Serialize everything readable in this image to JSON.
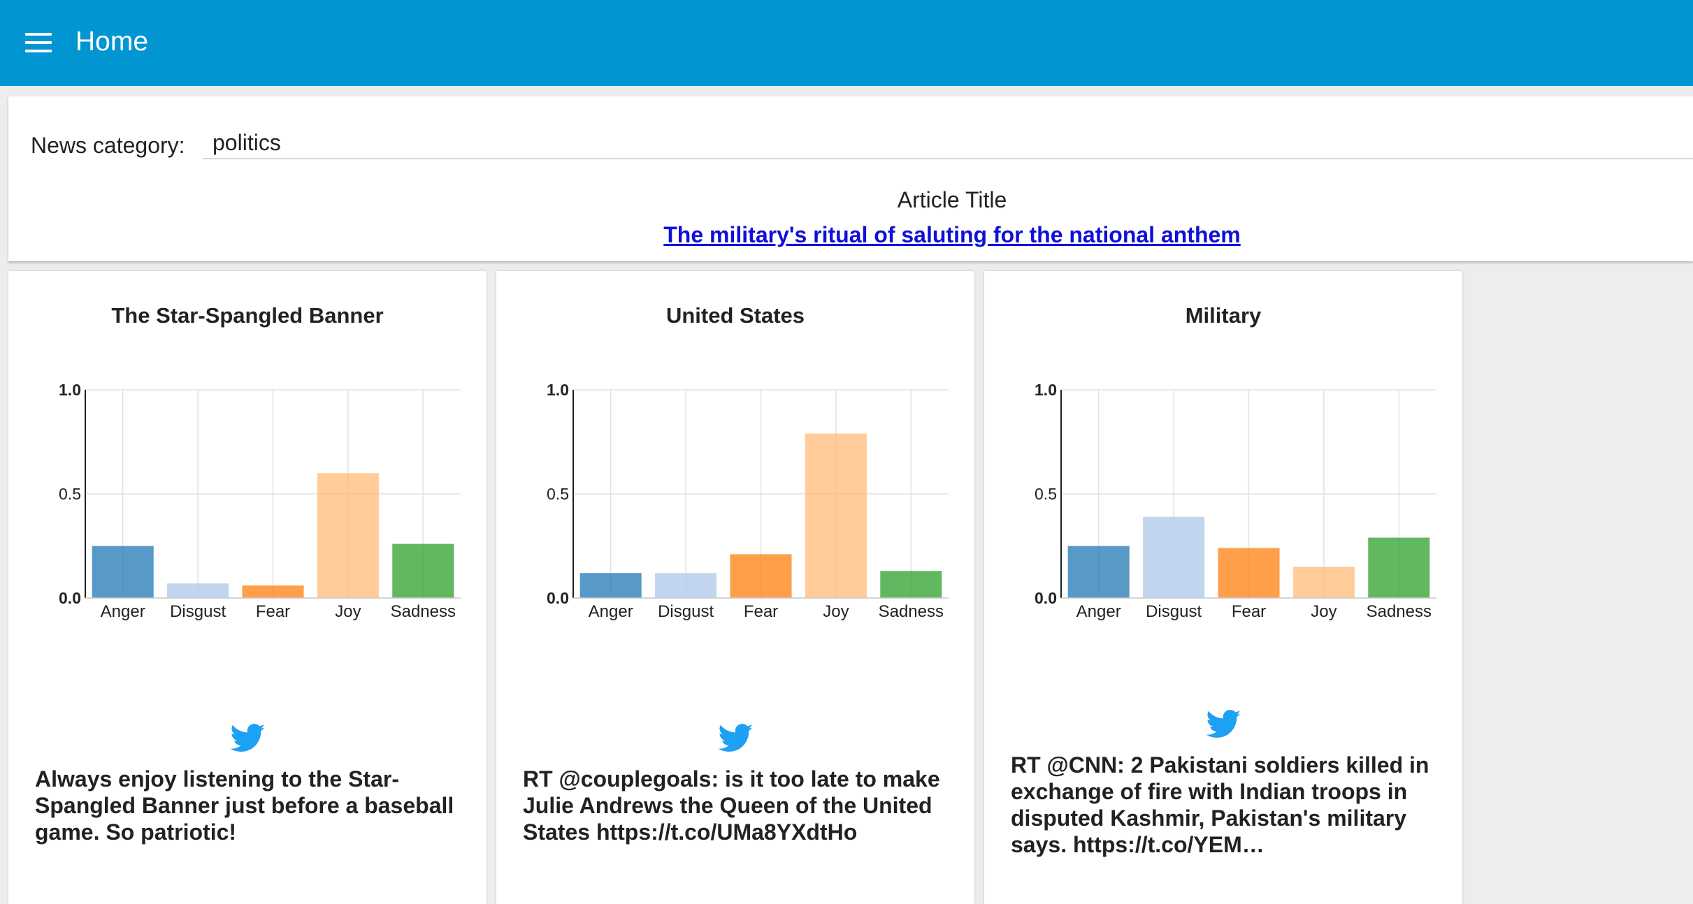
{
  "appbar": {
    "title": "Home"
  },
  "filter": {
    "label": "News category:",
    "value": "politics"
  },
  "article": {
    "heading": "Article Title",
    "title": "The military's ritual of saluting for the national anthem"
  },
  "colors": {
    "appbar": "#0195d2",
    "link": "#0f0fd9",
    "twitter": "#1da1f2",
    "anger": "#1f77b4",
    "disgust": "#aec7e8",
    "fear": "#ff7f0e",
    "joy": "#ffbb78",
    "sadness": "#2ca02c"
  },
  "cards": [
    {
      "title": "The Star-Spangled Banner",
      "tweet": "Always enjoy listening to the Star-Spangled Banner just before a baseball game. So patriotic!"
    },
    {
      "title": "United States",
      "tweet": "RT @couplegoals: is it too late to make Julie Andrews the Queen of the United States https://t.co/UMa8YXdtHo"
    },
    {
      "title": "Military",
      "tweet": "RT @CNN: 2 Pakistani soldiers killed in exchange of fire with Indian troops in disputed Kashmir, Pakistan's military says. https://t.co/YEM…"
    }
  ],
  "chart_data": [
    {
      "type": "bar",
      "title": "The Star-Spangled Banner",
      "categories": [
        "Anger",
        "Disgust",
        "Fear",
        "Joy",
        "Sadness"
      ],
      "values": [
        0.25,
        0.07,
        0.06,
        0.6,
        0.26
      ],
      "ylim": [
        0,
        1
      ],
      "yticks": [
        "0.0",
        "0.5",
        "1.0"
      ],
      "xlabel": "",
      "ylabel": ""
    },
    {
      "type": "bar",
      "title": "United States",
      "categories": [
        "Anger",
        "Disgust",
        "Fear",
        "Joy",
        "Sadness"
      ],
      "values": [
        0.12,
        0.12,
        0.21,
        0.79,
        0.13
      ],
      "ylim": [
        0,
        1
      ],
      "yticks": [
        "0.0",
        "0.5",
        "1.0"
      ],
      "xlabel": "",
      "ylabel": ""
    },
    {
      "type": "bar",
      "title": "Military",
      "categories": [
        "Anger",
        "Disgust",
        "Fear",
        "Joy",
        "Sadness"
      ],
      "values": [
        0.25,
        0.39,
        0.24,
        0.15,
        0.29
      ],
      "ylim": [
        0,
        1
      ],
      "yticks": [
        "0.0",
        "0.5",
        "1.0"
      ],
      "xlabel": "",
      "ylabel": ""
    }
  ]
}
